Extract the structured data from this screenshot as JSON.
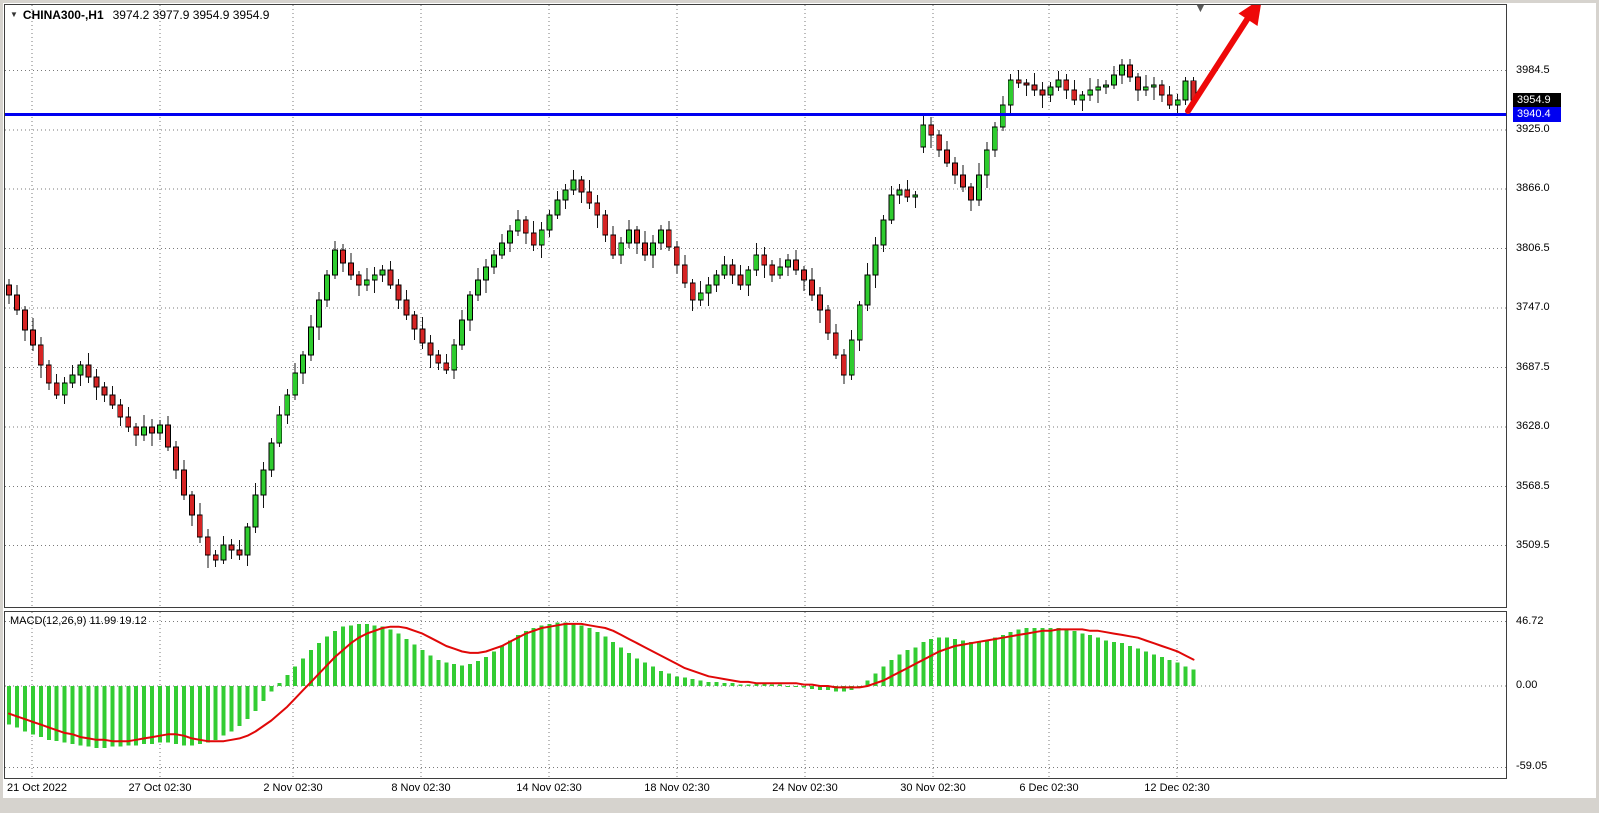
{
  "header": {
    "dropdown_icon": "▼",
    "symbol": "CHINA300-,H1",
    "ohlc": "3974.2 3977.9 3954.9 3954.9"
  },
  "shift_marker_icon": "▼",
  "macd": {
    "label": "MACD(12,26,9) 11.99 19.12"
  },
  "price_axis": {
    "ticks": [
      "3984.5",
      "3925.0",
      "3866.0",
      "3806.5",
      "3747.0",
      "3687.5",
      "3628.0",
      "3568.5",
      "3509.5"
    ],
    "tick_values": [
      3984.5,
      3925.0,
      3866.0,
      3806.5,
      3747.0,
      3687.5,
      3628.0,
      3568.5,
      3509.5
    ],
    "bid_badge": {
      "label": "3954.9",
      "value": 3954.9
    },
    "line_badge": {
      "label": "3940.4",
      "value": 3940.4
    }
  },
  "macd_axis": {
    "ticks": [
      "46.72",
      "0.00",
      "-59.05"
    ],
    "tick_values": [
      46.72,
      0,
      -59.05
    ]
  },
  "time_axis": {
    "labels": [
      "21 Oct 2022",
      "27 Oct 02:30",
      "2 Nov 02:30",
      "8 Nov 02:30",
      "14 Nov 02:30",
      "18 Nov 02:30",
      "24 Nov 02:30",
      "30 Nov 02:30",
      "6 Dec 02:30",
      "12 Dec 02:30"
    ]
  },
  "colors": {
    "bull": "#2ecc2e",
    "bear": "#d62424",
    "wick": "#141414",
    "candle_border": "#000000",
    "macd_hist": "#33cc33",
    "macd_signal": "#e00808",
    "level_line": "#0000f0",
    "bid_badge_bg": "#000000",
    "line_badge_bg": "#0000f0",
    "grid": "#7a7a7a",
    "arrow": "#ee0808"
  },
  "chart_data": [
    {
      "type": "candlestick",
      "title": "CHINA300-,H1",
      "symbol": "CHINA300-",
      "timeframe": "H1",
      "current_bar": {
        "open": 3974.2,
        "high": 3977.9,
        "low": 3954.9,
        "close": 3954.9
      },
      "bid_price": 3954.9,
      "horizontal_line_level": 3940.4,
      "ylim": [
        3448,
        4050
      ],
      "y_ticks": [
        3984.5,
        3925.0,
        3866.0,
        3806.5,
        3747.0,
        3687.5,
        3628.0,
        3568.5,
        3509.5
      ],
      "x_axis_labels": [
        "21 Oct 2022",
        "27 Oct 02:30",
        "2 Nov 02:30",
        "8 Nov 02:30",
        "14 Nov 02:30",
        "18 Nov 02:30",
        "24 Nov 02:30",
        "30 Nov 02:30",
        "6 Dec 02:30",
        "12 Dec 02:30"
      ],
      "grid": "dotted",
      "candles_ohlc": [
        [
          3770,
          3776,
          3751,
          3760
        ],
        [
          3760,
          3770,
          3740,
          3745
        ],
        [
          3745,
          3749,
          3714,
          3725
        ],
        [
          3725,
          3737,
          3704,
          3710
        ],
        [
          3710,
          3718,
          3677,
          3690
        ],
        [
          3690,
          3695,
          3665,
          3672
        ],
        [
          3672,
          3681,
          3656,
          3660
        ],
        [
          3660,
          3678,
          3651,
          3672
        ],
        [
          3672,
          3690,
          3667,
          3680
        ],
        [
          3680,
          3694,
          3669,
          3690
        ],
        [
          3690,
          3702,
          3672,
          3678
        ],
        [
          3678,
          3686,
          3655,
          3668
        ],
        [
          3668,
          3673,
          3653,
          3660
        ],
        [
          3660,
          3669,
          3646,
          3650
        ],
        [
          3650,
          3656,
          3629,
          3638
        ],
        [
          3638,
          3648,
          3623,
          3628
        ],
        [
          3628,
          3632,
          3609,
          3620
        ],
        [
          3620,
          3640,
          3614,
          3628
        ],
        [
          3628,
          3636,
          3609,
          3622
        ],
        [
          3622,
          3635,
          3615,
          3630
        ],
        [
          3630,
          3639,
          3604,
          3608
        ],
        [
          3608,
          3614,
          3576,
          3585
        ],
        [
          3585,
          3595,
          3555,
          3560
        ],
        [
          3560,
          3564,
          3529,
          3540
        ],
        [
          3540,
          3552,
          3512,
          3518
        ],
        [
          3518,
          3526,
          3487,
          3500
        ],
        [
          3500,
          3505,
          3488,
          3495
        ],
        [
          3495,
          3519,
          3491,
          3510
        ],
        [
          3510,
          3516,
          3496,
          3505
        ],
        [
          3505,
          3515,
          3495,
          3500
        ],
        [
          3500,
          3532,
          3489,
          3528
        ],
        [
          3528,
          3572,
          3522,
          3560
        ],
        [
          3560,
          3593,
          3547,
          3585
        ],
        [
          3585,
          3617,
          3578,
          3612
        ],
        [
          3612,
          3649,
          3608,
          3640
        ],
        [
          3640,
          3666,
          3631,
          3660
        ],
        [
          3660,
          3692,
          3655,
          3682
        ],
        [
          3682,
          3704,
          3671,
          3700
        ],
        [
          3700,
          3740,
          3694,
          3728
        ],
        [
          3728,
          3763,
          3715,
          3755
        ],
        [
          3755,
          3785,
          3748,
          3780
        ],
        [
          3780,
          3814,
          3776,
          3805
        ],
        [
          3805,
          3811,
          3783,
          3792
        ],
        [
          3792,
          3802,
          3775,
          3780
        ],
        [
          3780,
          3784,
          3759,
          3770
        ],
        [
          3770,
          3787,
          3764,
          3775
        ],
        [
          3775,
          3788,
          3762,
          3780
        ],
        [
          3780,
          3790,
          3773,
          3785
        ],
        [
          3785,
          3794,
          3766,
          3770
        ],
        [
          3770,
          3776,
          3746,
          3755
        ],
        [
          3755,
          3765,
          3735,
          3740
        ],
        [
          3740,
          3744,
          3715,
          3726
        ],
        [
          3726,
          3738,
          3706,
          3712
        ],
        [
          3712,
          3720,
          3687,
          3700
        ],
        [
          3700,
          3705,
          3685,
          3692
        ],
        [
          3692,
          3701,
          3681,
          3685
        ],
        [
          3685,
          3716,
          3676,
          3710
        ],
        [
          3710,
          3745,
          3705,
          3735
        ],
        [
          3735,
          3764,
          3724,
          3760
        ],
        [
          3760,
          3787,
          3754,
          3775
        ],
        [
          3775,
          3796,
          3762,
          3788
        ],
        [
          3788,
          3805,
          3781,
          3800
        ],
        [
          3800,
          3821,
          3796,
          3812
        ],
        [
          3812,
          3830,
          3803,
          3824
        ],
        [
          3824,
          3845,
          3819,
          3835
        ],
        [
          3835,
          3839,
          3811,
          3822
        ],
        [
          3822,
          3834,
          3804,
          3810
        ],
        [
          3810,
          3833,
          3797,
          3825
        ],
        [
          3825,
          3845,
          3818,
          3840
        ],
        [
          3840,
          3864,
          3836,
          3855
        ],
        [
          3855,
          3871,
          3846,
          3865
        ],
        [
          3865,
          3885,
          3860,
          3875
        ],
        [
          3875,
          3879,
          3852,
          3863
        ],
        [
          3863,
          3875,
          3846,
          3852
        ],
        [
          3852,
          3860,
          3827,
          3840
        ],
        [
          3840,
          3845,
          3813,
          3820
        ],
        [
          3820,
          3829,
          3796,
          3800
        ],
        [
          3800,
          3818,
          3791,
          3812
        ],
        [
          3812,
          3835,
          3807,
          3825
        ],
        [
          3825,
          3829,
          3801,
          3812
        ],
        [
          3812,
          3824,
          3794,
          3800
        ],
        [
          3800,
          3820,
          3787,
          3812
        ],
        [
          3812,
          3830,
          3805,
          3825
        ],
        [
          3825,
          3834,
          3804,
          3808
        ],
        [
          3808,
          3814,
          3781,
          3790
        ],
        [
          3790,
          3800,
          3767,
          3772
        ],
        [
          3772,
          3776,
          3744,
          3755
        ],
        [
          3755,
          3774,
          3749,
          3762
        ],
        [
          3762,
          3778,
          3749,
          3770
        ],
        [
          3770,
          3785,
          3763,
          3780
        ],
        [
          3780,
          3799,
          3776,
          3790
        ],
        [
          3790,
          3796,
          3771,
          3780
        ],
        [
          3780,
          3790,
          3765,
          3770
        ],
        [
          3770,
          3789,
          3759,
          3785
        ],
        [
          3785,
          3812,
          3779,
          3800
        ],
        [
          3800,
          3808,
          3777,
          3790
        ],
        [
          3790,
          3795,
          3773,
          3780
        ],
        [
          3780,
          3797,
          3776,
          3788
        ],
        [
          3788,
          3801,
          3779,
          3795
        ],
        [
          3795,
          3805,
          3780,
          3785
        ],
        [
          3785,
          3789,
          3764,
          3775
        ],
        [
          3775,
          3787,
          3754,
          3760
        ],
        [
          3760,
          3768,
          3732,
          3745
        ],
        [
          3745,
          3750,
          3715,
          3722
        ],
        [
          3722,
          3731,
          3696,
          3700
        ],
        [
          3700,
          3706,
          3671,
          3680
        ],
        [
          3680,
          3725,
          3675,
          3715
        ],
        [
          3715,
          3754,
          3704,
          3750
        ],
        [
          3750,
          3792,
          3744,
          3780
        ],
        [
          3780,
          3818,
          3767,
          3810
        ],
        [
          3810,
          3840,
          3803,
          3835
        ],
        [
          3835,
          3869,
          3831,
          3860
        ],
        [
          3860,
          3871,
          3851,
          3865
        ],
        [
          3865,
          3875,
          3853,
          3858
        ],
        [
          3858,
          3864,
          3847,
          3860
        ],
        [
          3908,
          3942,
          3902,
          3930
        ],
        [
          3930,
          3938,
          3907,
          3920
        ],
        [
          3920,
          3925,
          3898,
          3905
        ],
        [
          3905,
          3914,
          3888,
          3892
        ],
        [
          3892,
          3898,
          3871,
          3880
        ],
        [
          3880,
          3890,
          3863,
          3868
        ],
        [
          3868,
          3872,
          3844,
          3855
        ],
        [
          3855,
          3892,
          3849,
          3880
        ],
        [
          3880,
          3913,
          3867,
          3905
        ],
        [
          3905,
          3933,
          3898,
          3928
        ],
        [
          3928,
          3959,
          3924,
          3950
        ],
        [
          3950,
          3981,
          3941,
          3975
        ],
        [
          3975,
          3985,
          3967,
          3972
        ],
        [
          3972,
          3976,
          3959,
          3970
        ],
        [
          3970,
          3982,
          3959,
          3965
        ],
        [
          3965,
          3973,
          3947,
          3960
        ],
        [
          3960,
          3973,
          3953,
          3968
        ],
        [
          3968,
          3984,
          3964,
          3975
        ],
        [
          3975,
          3981,
          3956,
          3965
        ],
        [
          3965,
          3975,
          3950,
          3955
        ],
        [
          3955,
          3964,
          3944,
          3960
        ],
        [
          3960,
          3977,
          3954,
          3965
        ],
        [
          3965,
          3976,
          3952,
          3968
        ],
        [
          3968,
          3975,
          3961,
          3970
        ],
        [
          3970,
          3989,
          3966,
          3980
        ],
        [
          3980,
          3996,
          3971,
          3990
        ],
        [
          3990,
          3996,
          3973,
          3978
        ],
        [
          3978,
          3982,
          3954,
          3965
        ],
        [
          3965,
          3980,
          3959,
          3968
        ],
        [
          3968,
          3978,
          3955,
          3970
        ],
        [
          3970,
          3975,
          3953,
          3960
        ],
        [
          3960,
          3969,
          3946,
          3950
        ],
        [
          3950,
          3961,
          3941,
          3955
        ],
        [
          3955,
          3978,
          3950,
          3974
        ],
        [
          3974.2,
          3977.9,
          3954.9,
          3954.9
        ]
      ]
    },
    {
      "type": "macd",
      "label": "MACD(12,26,9)",
      "macd_value": 11.99,
      "signal_value": 19.12,
      "y_ticks": [
        46.72,
        0.0,
        -59.05
      ],
      "ylim": [
        -59.05,
        46.72
      ],
      "histogram": [
        -28,
        -30,
        -33,
        -35,
        -37,
        -39,
        -40,
        -41,
        -42,
        -43,
        -44,
        -45,
        -45,
        -44,
        -44,
        -43,
        -43,
        -42,
        -42,
        -41,
        -41,
        -42,
        -43,
        -43,
        -42,
        -41,
        -39,
        -36,
        -33,
        -29,
        -24,
        -18,
        -11,
        -4,
        2,
        8,
        14,
        20,
        26,
        31,
        36,
        40,
        43,
        44,
        45,
        45,
        44,
        43,
        41,
        38,
        34,
        30,
        26,
        22,
        19,
        17,
        16,
        15,
        16,
        18,
        21,
        25,
        29,
        33,
        37,
        40,
        42,
        44,
        45,
        46,
        46,
        45,
        44,
        42,
        39,
        36,
        32,
        28,
        24,
        20,
        17,
        14,
        11,
        9,
        7,
        6,
        5,
        4,
        3,
        3,
        2,
        2,
        1,
        1,
        2,
        2,
        1,
        1,
        0,
        0,
        -1,
        -2,
        -3,
        -3,
        -4,
        -4,
        -3,
        0,
        4,
        9,
        14,
        19,
        23,
        26,
        28,
        32,
        34,
        35,
        35,
        34,
        33,
        32,
        32,
        33,
        35,
        37,
        39,
        41,
        42,
        42,
        42,
        42,
        42,
        41,
        40,
        38,
        37,
        35,
        33,
        32,
        31,
        29,
        27,
        25,
        23,
        21,
        19,
        17,
        14,
        11.99
      ],
      "signal": [
        -20,
        -22,
        -24,
        -26,
        -28,
        -30,
        -32,
        -34,
        -35,
        -37,
        -38,
        -39,
        -39,
        -40,
        -40,
        -40,
        -39,
        -38,
        -37,
        -36,
        -35,
        -35,
        -36,
        -38,
        -39,
        -40,
        -40,
        -40,
        -39,
        -38,
        -36,
        -33,
        -29,
        -25,
        -20,
        -15,
        -9,
        -3,
        3,
        9,
        15,
        21,
        26,
        31,
        35,
        38,
        40,
        42,
        43,
        43,
        42,
        40,
        38,
        35,
        32,
        29,
        27,
        25,
        24,
        24,
        25,
        27,
        29,
        32,
        35,
        38,
        40,
        42,
        43,
        44,
        45,
        45,
        45,
        44,
        43,
        42,
        40,
        37,
        34,
        31,
        28,
        25,
        22,
        19,
        16,
        13,
        11,
        9,
        7,
        6,
        5,
        4,
        3,
        3,
        2,
        2,
        2,
        2,
        2,
        2,
        1,
        1,
        0,
        0,
        -1,
        -1,
        -1,
        -1,
        0,
        2,
        4,
        7,
        10,
        13,
        16,
        19,
        22,
        25,
        27,
        29,
        30,
        31,
        32,
        33,
        34,
        35,
        36,
        37,
        38,
        39,
        40,
        40,
        41,
        41,
        41,
        41,
        40,
        40,
        39,
        38,
        37,
        36,
        35,
        33,
        31,
        29,
        27,
        25,
        22,
        19.12
      ]
    }
  ]
}
